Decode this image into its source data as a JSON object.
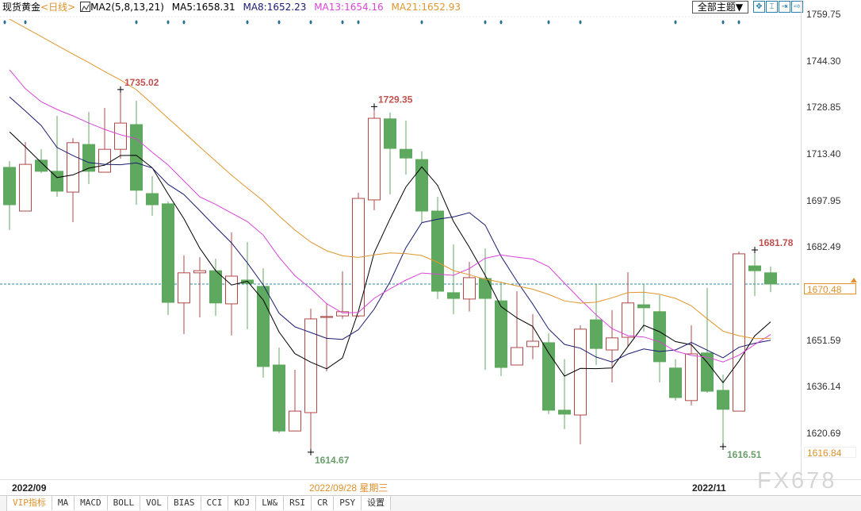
{
  "header": {
    "instrument": "现货黄金",
    "period": "<日线>",
    "indicator": "MA2(5,8,13,21)",
    "ma5": "MA5:1658.31",
    "ma8": "MA8:1652.23",
    "ma13": "MA13:1654.16",
    "ma21": "MA21:1652.93",
    "theme_button": "全部主题▼",
    "tools": [
      {
        "icon": "crosshair-icon",
        "glyph": "✥"
      },
      {
        "icon": "zoom-range-icon",
        "glyph": "⌶"
      },
      {
        "icon": "step-forward-icon",
        "glyph": "⇥"
      },
      {
        "icon": "jump-end-icon",
        "glyph": "⇨"
      }
    ]
  },
  "colors": {
    "up": "#b04848",
    "down": "#5fa85f",
    "ma5": "#000000",
    "ma8": "#1a1a70",
    "ma13": "#d845d8",
    "ma21": "#e0962e",
    "price_line": "#2a8aa0",
    "accent": "#e0902a"
  },
  "axis": {
    "ticks": [
      "1759.75",
      "1744.30",
      "1728.85",
      "1713.40",
      "1697.95",
      "1682.49",
      "1651.59",
      "1636.14",
      "1620.69"
    ],
    "current_price": "1670.48",
    "low_marker": "1616.84"
  },
  "dates": {
    "left": "2022/09",
    "cursor": "2022/09/28 星期三",
    "right": "2022/11"
  },
  "tabs": [
    "VIP指标",
    "MA",
    "MACD",
    "BOLL",
    "VOL",
    "BIAS",
    "CCI",
    "KDJ",
    "LW&",
    "RSI",
    "CR",
    "PSY",
    "设置"
  ],
  "watermark": "FX678",
  "chart_data": {
    "type": "candlestick",
    "ohlc": [
      [
        1709.2,
        1711.3,
        1688.4,
        1696.8
      ],
      [
        1694.7,
        1717.6,
        1694.7,
        1710.2
      ],
      [
        1711.6,
        1715.2,
        1707.3,
        1707.9
      ],
      [
        1707.9,
        1726.3,
        1699.4,
        1701.3
      ],
      [
        1701.0,
        1718.9,
        1691.0,
        1717.4
      ],
      [
        1716.8,
        1727.6,
        1703.7,
        1707.9
      ],
      [
        1707.6,
        1728.9,
        1707.6,
        1715.2
      ],
      [
        1715.2,
        1735.02,
        1712.1,
        1723.9
      ],
      [
        1723.4,
        1731.3,
        1696.8,
        1701.6
      ],
      [
        1700.5,
        1706.3,
        1693.1,
        1696.8
      ],
      [
        1697.1,
        1697.9,
        1660.2,
        1664.4
      ],
      [
        1664.2,
        1680.0,
        1653.9,
        1674.2
      ],
      [
        1674.2,
        1679.4,
        1659.4,
        1674.9
      ],
      [
        1674.9,
        1678.9,
        1659.9,
        1664.2
      ],
      [
        1663.9,
        1687.6,
        1653.4,
        1673.1
      ],
      [
        1671.8,
        1684.4,
        1655.5,
        1670.7
      ],
      [
        1669.7,
        1675.7,
        1639.4,
        1643.1
      ],
      [
        1643.6,
        1649.4,
        1621.0,
        1621.7
      ],
      [
        1621.7,
        1642.0,
        1621.7,
        1628.3
      ],
      [
        1627.8,
        1662.3,
        1614.67,
        1658.9
      ],
      [
        1659.4,
        1663.9,
        1641.5,
        1659.7
      ],
      [
        1659.9,
        1674.7,
        1658.9,
        1661.3
      ],
      [
        1659.9,
        1700.8,
        1659.4,
        1698.9
      ],
      [
        1698.4,
        1729.35,
        1695.0,
        1725.5
      ],
      [
        1725.3,
        1727.4,
        1700.2,
        1715.5
      ],
      [
        1715.2,
        1724.7,
        1706.8,
        1712.3
      ],
      [
        1711.8,
        1714.5,
        1691.0,
        1694.7
      ],
      [
        1694.7,
        1699.4,
        1665.5,
        1668.1
      ],
      [
        1667.6,
        1683.6,
        1660.5,
        1665.7
      ],
      [
        1665.5,
        1677.8,
        1661.3,
        1672.6
      ],
      [
        1672.3,
        1682.3,
        1642.0,
        1665.7
      ],
      [
        1664.9,
        1671.3,
        1639.9,
        1642.8
      ],
      [
        1643.6,
        1668.1,
        1643.6,
        1649.4
      ],
      [
        1649.7,
        1660.5,
        1645.5,
        1651.5
      ],
      [
        1651.0,
        1654.1,
        1627.3,
        1628.6
      ],
      [
        1628.6,
        1645.5,
        1622.3,
        1627.3
      ],
      [
        1627.0,
        1656.8,
        1617.3,
        1655.5
      ],
      [
        1658.6,
        1670.5,
        1643.6,
        1649.1
      ],
      [
        1648.6,
        1661.8,
        1637.8,
        1652.6
      ],
      [
        1652.8,
        1674.4,
        1649.7,
        1664.2
      ],
      [
        1663.6,
        1670.5,
        1654.7,
        1662.6
      ],
      [
        1661.3,
        1666.8,
        1637.8,
        1644.7
      ],
      [
        1642.6,
        1645.5,
        1631.8,
        1632.8
      ],
      [
        1631.8,
        1656.8,
        1630.2,
        1647.3
      ],
      [
        1647.6,
        1669.2,
        1634.4,
        1634.9
      ],
      [
        1635.2,
        1640.4,
        1616.51,
        1628.9
      ],
      [
        1628.3,
        1681.3,
        1628.3,
        1680.5
      ],
      [
        1676.5,
        1681.78,
        1666.5,
        1674.9
      ],
      [
        1674.2,
        1676.3,
        1667.8,
        1670.48
      ]
    ],
    "ma_periods": [
      5,
      8,
      13,
      21
    ],
    "ma_leading_values": {
      "5": [
        1721.0,
        1716.0,
        1710.8,
        1705.8
      ],
      "8": [
        1732.6,
        1727.9,
        1723.1,
        1715.8,
        1713.1,
        1710.8,
        1710.2
      ],
      "13": [
        1741.6,
        1735.3,
        1731.0,
        1728.4,
        1726.3,
        1723.9,
        1721.8,
        1720.0,
        1718.7,
        1714.2,
        1710.0,
        1704.7
      ],
      "21": [
        1758.4,
        1755.5,
        1752.6,
        1749.7,
        1746.8,
        1744.0,
        1741.0,
        1738.2,
        1735.0,
        1730.3,
        1725.5,
        1720.8,
        1716.0,
        1711.3,
        1706.6,
        1702.3,
        1698.1,
        1693.1,
        1688.4,
        1684.4
      ]
    },
    "annotations": [
      {
        "index": 7,
        "value": "1735.02",
        "kind": "high"
      },
      {
        "index": 23,
        "value": "1729.35",
        "kind": "high"
      },
      {
        "index": 47,
        "value": "1681.78",
        "kind": "high"
      },
      {
        "index": 19,
        "value": "1614.67",
        "kind": "low"
      },
      {
        "index": 45,
        "value": "1616.51",
        "kind": "low"
      }
    ],
    "event_markers": [
      0,
      1,
      8,
      10,
      11,
      15,
      17,
      19,
      21,
      22,
      26,
      30,
      31,
      34,
      36,
      42,
      45,
      46
    ],
    "current_price": 1670.48,
    "ylim": [
      1620.69,
      1759.75
    ]
  }
}
